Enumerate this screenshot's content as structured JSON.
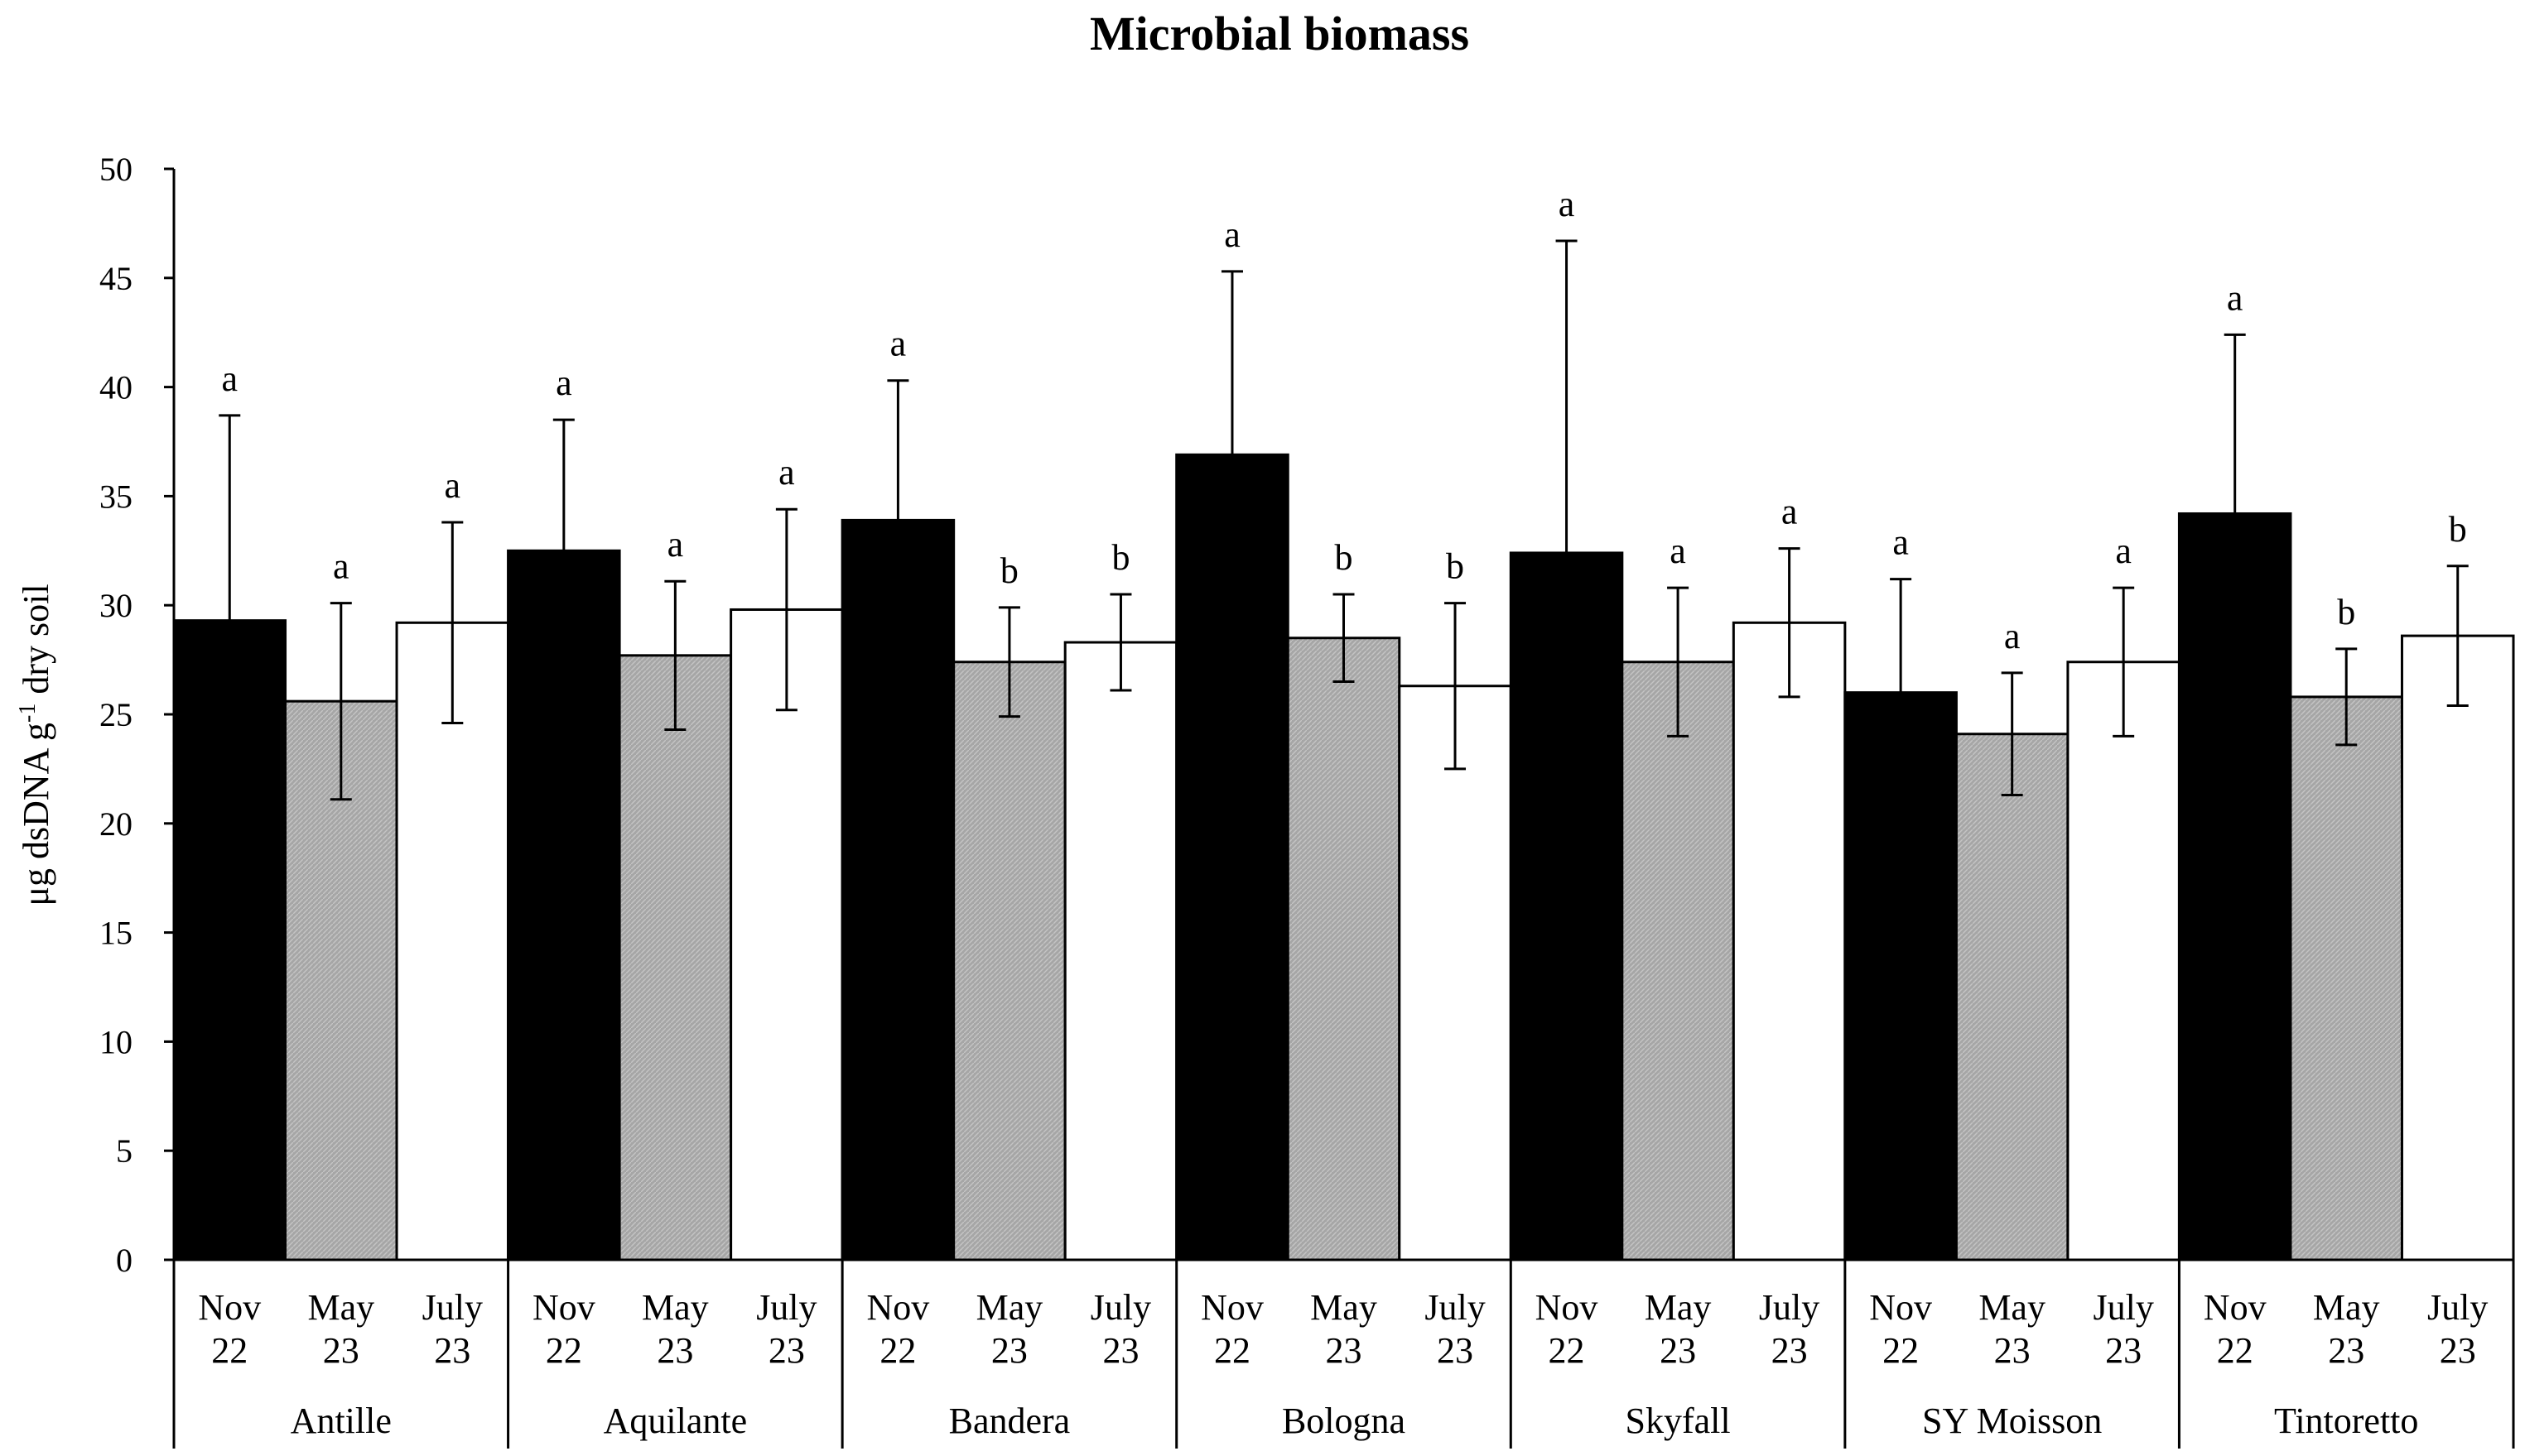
{
  "chart_data": {
    "type": "bar",
    "title": "Microbial biomass",
    "ylabel_main": "μg dsDNA g",
    "ylabel_sup": "-1",
    "ylabel_rest": " dry soil",
    "xlabel": "",
    "ylim": [
      0,
      50
    ],
    "yticks": [
      "0",
      "5",
      "10",
      "15",
      "20",
      "25",
      "30",
      "35",
      "40",
      "45",
      "50"
    ],
    "grid": false,
    "groups": [
      "Antille",
      "Aquilante",
      "Bandera",
      "Bologna",
      "Skyfall",
      "SY Moisson",
      "Tintoretto"
    ],
    "series": [
      {
        "name": "Nov 22",
        "label_line1": "Nov",
        "label_line2": "22",
        "color": "#000000",
        "values": [
          29.3,
          32.5,
          33.9,
          36.9,
          32.4,
          26.0,
          34.2
        ],
        "errors": [
          9.4,
          6.0,
          6.4,
          8.4,
          14.3,
          5.2,
          8.2
        ],
        "letters": [
          "a",
          "a",
          "a",
          "a",
          "a",
          "a",
          "a"
        ]
      },
      {
        "name": "May 23",
        "label_line1": "May",
        "label_line2": "23",
        "color": "#a8a8a8",
        "values": [
          25.6,
          27.7,
          27.4,
          28.5,
          27.4,
          24.1,
          25.8
        ],
        "errors": [
          4.5,
          3.4,
          2.5,
          2.0,
          3.4,
          2.8,
          2.2
        ],
        "letters": [
          "a",
          "a",
          "b",
          "b",
          "a",
          "a",
          "b"
        ]
      },
      {
        "name": "July 23",
        "label_line1": "July",
        "label_line2": "23",
        "color": "#ffffff",
        "values": [
          29.2,
          29.8,
          28.3,
          26.3,
          29.2,
          27.4,
          28.6
        ],
        "errors": [
          4.6,
          4.6,
          2.2,
          3.8,
          3.4,
          3.4,
          3.2
        ],
        "letters": [
          "a",
          "a",
          "b",
          "b",
          "a",
          "a",
          "b"
        ]
      }
    ]
  }
}
